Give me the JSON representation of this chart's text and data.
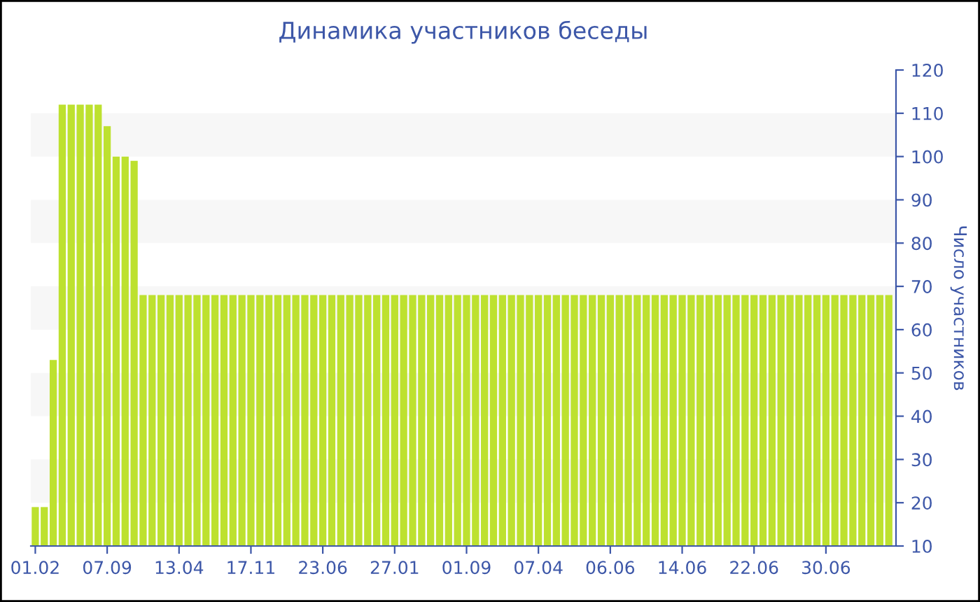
{
  "chart_data": {
    "type": "bar",
    "title": "Динамика участников беседы",
    "ylabel": "Число участников",
    "categories": [
      "01.02",
      null,
      null,
      null,
      null,
      null,
      null,
      null,
      "07.09",
      null,
      null,
      null,
      null,
      null,
      null,
      null,
      "13.04",
      null,
      null,
      null,
      null,
      null,
      null,
      null,
      "17.11",
      null,
      null,
      null,
      null,
      null,
      null,
      null,
      "23.06",
      null,
      null,
      null,
      null,
      null,
      null,
      null,
      "27.01",
      null,
      null,
      null,
      null,
      null,
      null,
      null,
      "01.09",
      null,
      null,
      null,
      null,
      null,
      null,
      null,
      "07.04",
      null,
      null,
      null,
      null,
      null,
      null,
      null,
      "06.06",
      null,
      null,
      null,
      null,
      null,
      null,
      null,
      "14.06",
      null,
      null,
      null,
      null,
      null,
      null,
      null,
      "22.06",
      null,
      null,
      null,
      null,
      null,
      null,
      null,
      "30.06",
      null,
      null,
      null,
      null,
      null,
      null,
      null
    ],
    "values": [
      19,
      19,
      53,
      112,
      112,
      112,
      112,
      112,
      107,
      100,
      100,
      99,
      68,
      68,
      68,
      68,
      68,
      68,
      68,
      68,
      68,
      68,
      68,
      68,
      68,
      68,
      68,
      68,
      68,
      68,
      68,
      68,
      68,
      68,
      68,
      68,
      68,
      68,
      68,
      68,
      68,
      68,
      68,
      68,
      68,
      68,
      68,
      68,
      68,
      68,
      68,
      68,
      68,
      68,
      68,
      68,
      68,
      68,
      68,
      68,
      68,
      68,
      68,
      68,
      68,
      68,
      68,
      68,
      68,
      68,
      68,
      68,
      68,
      68,
      68,
      68,
      68,
      68,
      68,
      68,
      68,
      68,
      68,
      68,
      68,
      68,
      68,
      68,
      68,
      68,
      68,
      68,
      68,
      68,
      68,
      68
    ],
    "color": "#bde12f",
    "ylim": [
      10,
      120
    ],
    "yticks": [
      10,
      20,
      30,
      40,
      50,
      60,
      70,
      80,
      90,
      100,
      110,
      120
    ],
    "bands": [
      {
        "axis": "y",
        "from": 20,
        "to": 30,
        "color": "#f7f7f7"
      },
      {
        "axis": "y",
        "from": 40,
        "to": 50,
        "color": "#f7f7f7"
      },
      {
        "axis": "y",
        "from": 60,
        "to": 70,
        "color": "#f7f7f7"
      },
      {
        "axis": "y",
        "from": 80,
        "to": 90,
        "color": "#f7f7f7"
      },
      {
        "axis": "y",
        "from": 100,
        "to": 110,
        "color": "#f7f7f7"
      }
    ],
    "grid": false,
    "legend": false
  }
}
